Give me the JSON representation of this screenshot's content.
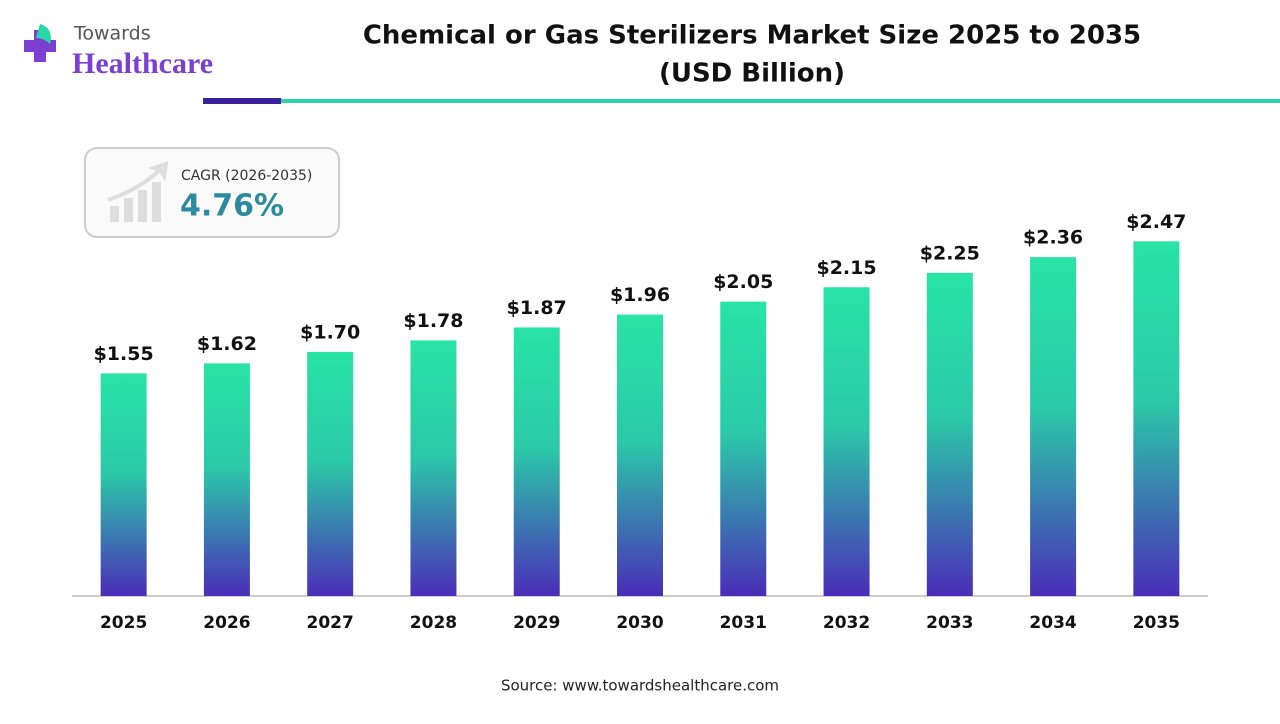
{
  "logo": {
    "line1": "Towards",
    "line2": "Healthcare"
  },
  "cagr": {
    "label": "CAGR (2026-2035)",
    "value": "4.76%"
  },
  "source": "Source: www.towardshealthcare.com",
  "chart_data": {
    "type": "bar",
    "title": "Chemical or Gas Sterilizers Market Size 2025 to 2035",
    "subtitle": "(USD Billion)",
    "categories": [
      "2025",
      "2026",
      "2027",
      "2028",
      "2029",
      "2030",
      "2031",
      "2032",
      "2033",
      "2034",
      "2035"
    ],
    "values": [
      1.55,
      1.62,
      1.7,
      1.78,
      1.87,
      1.96,
      2.05,
      2.15,
      2.25,
      2.36,
      2.47
    ],
    "value_labels": [
      "$1.55",
      "$1.62",
      "$1.70",
      "$1.78",
      "$1.87",
      "$1.96",
      "$2.05",
      "$2.15",
      "$2.25",
      "$2.36",
      "$2.47"
    ],
    "gradient": [
      "#28e4a5",
      "#4a2db8"
    ],
    "ylim": [
      0,
      2.5
    ]
  }
}
